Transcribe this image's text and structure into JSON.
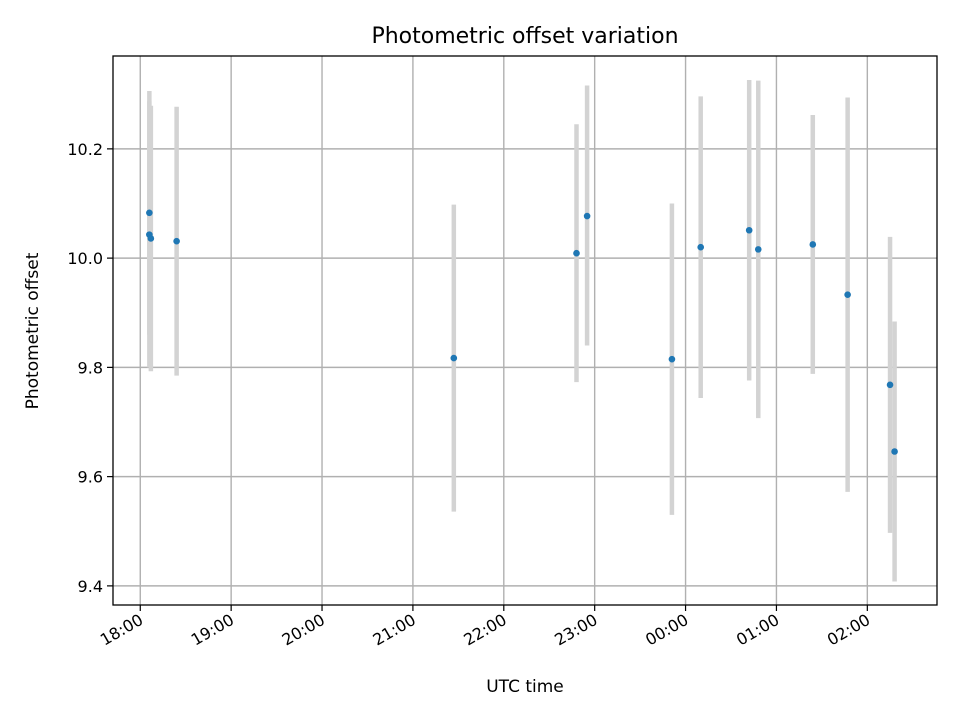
{
  "chart_data": {
    "type": "scatter",
    "title": "Photometric offset variation",
    "xlabel": "UTC time",
    "ylabel": "Photometric offset",
    "x_axis": {
      "kind": "time",
      "range": [
        "17:42",
        "02:46"
      ],
      "ticks": [
        "18:00",
        "19:00",
        "20:00",
        "21:00",
        "22:00",
        "23:00",
        "00:00",
        "01:00",
        "02:00"
      ]
    },
    "y_axis": {
      "range": [
        9.365,
        10.37
      ],
      "ticks": [
        "9.4",
        "9.6",
        "9.8",
        "10.0",
        "10.2"
      ]
    },
    "grid": true,
    "legend": "none",
    "series": [
      {
        "color": "#1f77b4",
        "errorbar_color": "#d3d3d3",
        "points": [
          {
            "time": "18:06",
            "y": 10.043,
            "low": 9.8,
            "high": 10.287
          },
          {
            "time": "18:06",
            "y": 10.083,
            "low": 9.86,
            "high": 10.306
          },
          {
            "time": "18:07",
            "y": 10.036,
            "low": 9.793,
            "high": 10.279
          },
          {
            "time": "18:24",
            "y": 10.031,
            "low": 9.785,
            "high": 10.277
          },
          {
            "time": "21:27",
            "y": 9.817,
            "low": 9.536,
            "high": 10.098
          },
          {
            "time": "22:48",
            "y": 10.009,
            "low": 9.773,
            "high": 10.245
          },
          {
            "time": "22:55",
            "y": 10.077,
            "low": 9.84,
            "high": 10.316
          },
          {
            "time": "23:51",
            "y": 9.815,
            "low": 9.53,
            "high": 10.1
          },
          {
            "time": "00:10",
            "y": 10.02,
            "low": 9.744,
            "high": 10.296
          },
          {
            "time": "00:42",
            "y": 10.051,
            "low": 9.776,
            "high": 10.326
          },
          {
            "time": "00:48",
            "y": 10.016,
            "low": 9.707,
            "high": 10.325
          },
          {
            "time": "01:24",
            "y": 10.025,
            "low": 9.788,
            "high": 10.262
          },
          {
            "time": "01:47",
            "y": 9.933,
            "low": 9.572,
            "high": 10.294
          },
          {
            "time": "02:15",
            "y": 9.768,
            "low": 9.497,
            "high": 10.039
          },
          {
            "time": "02:18",
            "y": 9.646,
            "low": 9.408,
            "high": 9.884
          }
        ]
      }
    ]
  }
}
